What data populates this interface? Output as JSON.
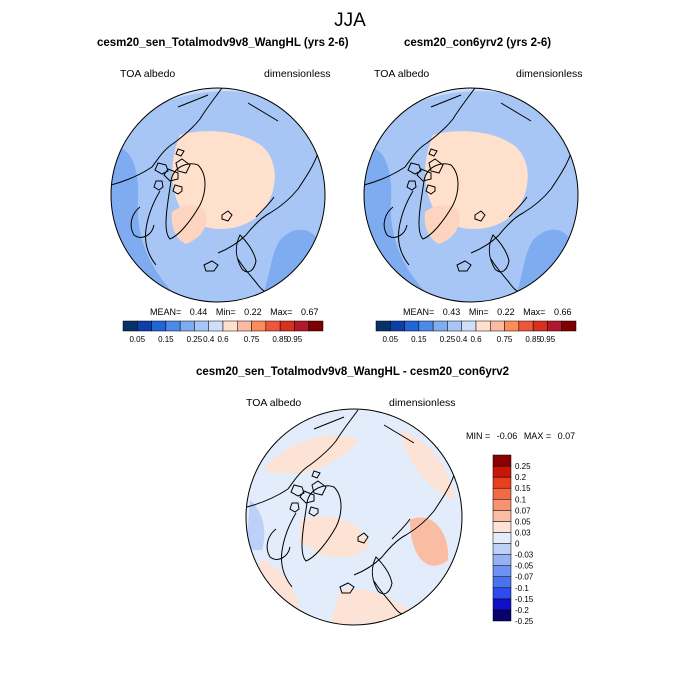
{
  "season": "JJA",
  "panels": [
    {
      "title": "cesm20_sen_Totalmodv9v8_WangHL (yrs 2-6)",
      "variable": "TOA albedo",
      "units": "dimensionless",
      "mean_label": "MEAN=",
      "mean": "0.44",
      "min_label": "Min=",
      "min": "0.22",
      "max_label": "Max=",
      "max": "0.67"
    },
    {
      "title": "cesm20_con6yrv2 (yrs 2-6)",
      "variable": "TOA albedo",
      "units": "dimensionless",
      "mean_label": "MEAN=",
      "mean": "0.43",
      "min_label": "Min=",
      "min": "0.22",
      "max_label": "Max=",
      "max": "0.66"
    }
  ],
  "diff_panel": {
    "title": "cesm20_sen_Totalmodv9v8_WangHL - cesm20_con6yrv2",
    "variable": "TOA albedo",
    "units": "dimensionless",
    "min_label": "MIN =",
    "min": "-0.06",
    "max_label": "MAX =",
    "max": "0.07"
  },
  "chart_data": [
    {
      "type": "heatmap",
      "projection": "north-polar-stereographic",
      "title": "cesm20_sen_Totalmodv9v8_WangHL (yrs 2-6)",
      "field": "TOA albedo",
      "units": "dimensionless",
      "mean": 0.44,
      "min": 0.22,
      "max": 0.67,
      "colorbar_levels": [
        0.05,
        0.15,
        0.25,
        0.4,
        0.6,
        0.75,
        0.85,
        0.95
      ],
      "colorbar_labels": [
        "0.05",
        "0.15",
        "0.25",
        "0.4",
        "0.6",
        "0.75",
        "0.85",
        "0.95"
      ],
      "colorbar_colors": [
        "#08306b",
        "#0d3fa8",
        "#2166d6",
        "#4d8ae8",
        "#7fabf0",
        "#a7c6f5",
        "#cfdff9",
        "#ffe0cc",
        "#fcbba1",
        "#fc8d59",
        "#ef553b",
        "#d7301f",
        "#b2182b",
        "#7f0000"
      ]
    },
    {
      "type": "heatmap",
      "projection": "north-polar-stereographic",
      "title": "cesm20_con6yrv2 (yrs 2-6)",
      "field": "TOA albedo",
      "units": "dimensionless",
      "mean": 0.43,
      "min": 0.22,
      "max": 0.66,
      "colorbar_levels": [
        0.05,
        0.15,
        0.25,
        0.4,
        0.6,
        0.75,
        0.85,
        0.95
      ],
      "colorbar_labels": [
        "0.05",
        "0.15",
        "0.25",
        "0.4",
        "0.6",
        "0.75",
        "0.85",
        "0.95"
      ],
      "colorbar_colors": [
        "#08306b",
        "#0d3fa8",
        "#2166d6",
        "#4d8ae8",
        "#7fabf0",
        "#a7c6f5",
        "#cfdff9",
        "#ffe0cc",
        "#fcbba1",
        "#fc8d59",
        "#ef553b",
        "#d7301f",
        "#b2182b",
        "#7f0000"
      ]
    },
    {
      "type": "heatmap",
      "projection": "north-polar-stereographic",
      "title": "cesm20_sen_Totalmodv9v8_WangHL - cesm20_con6yrv2",
      "field": "TOA albedo",
      "units": "dimensionless",
      "min": -0.06,
      "max": 0.07,
      "colorbar_levels": [
        -0.25,
        -0.2,
        -0.15,
        -0.1,
        -0.07,
        -0.05,
        -0.03,
        0,
        0.03,
        0.05,
        0.07,
        0.1,
        0.15,
        0.2,
        0.25
      ],
      "colorbar_labels": [
        "-0.25",
        "-0.2",
        "-0.15",
        "-0.1",
        "-0.07",
        "-0.05",
        "-0.03",
        "0",
        "0.03",
        "0.05",
        "0.07",
        "0.1",
        "0.15",
        "0.2",
        "0.25"
      ],
      "colorbar_colors": [
        "#08006b",
        "#1010c8",
        "#2e4bf0",
        "#4a72f0",
        "#6d93f2",
        "#95b2f4",
        "#bdd0f8",
        "#e2ecfb",
        "#fde2d6",
        "#fbbca4",
        "#f99273",
        "#f46a45",
        "#e8401f",
        "#c81608",
        "#8b0000"
      ]
    }
  ]
}
